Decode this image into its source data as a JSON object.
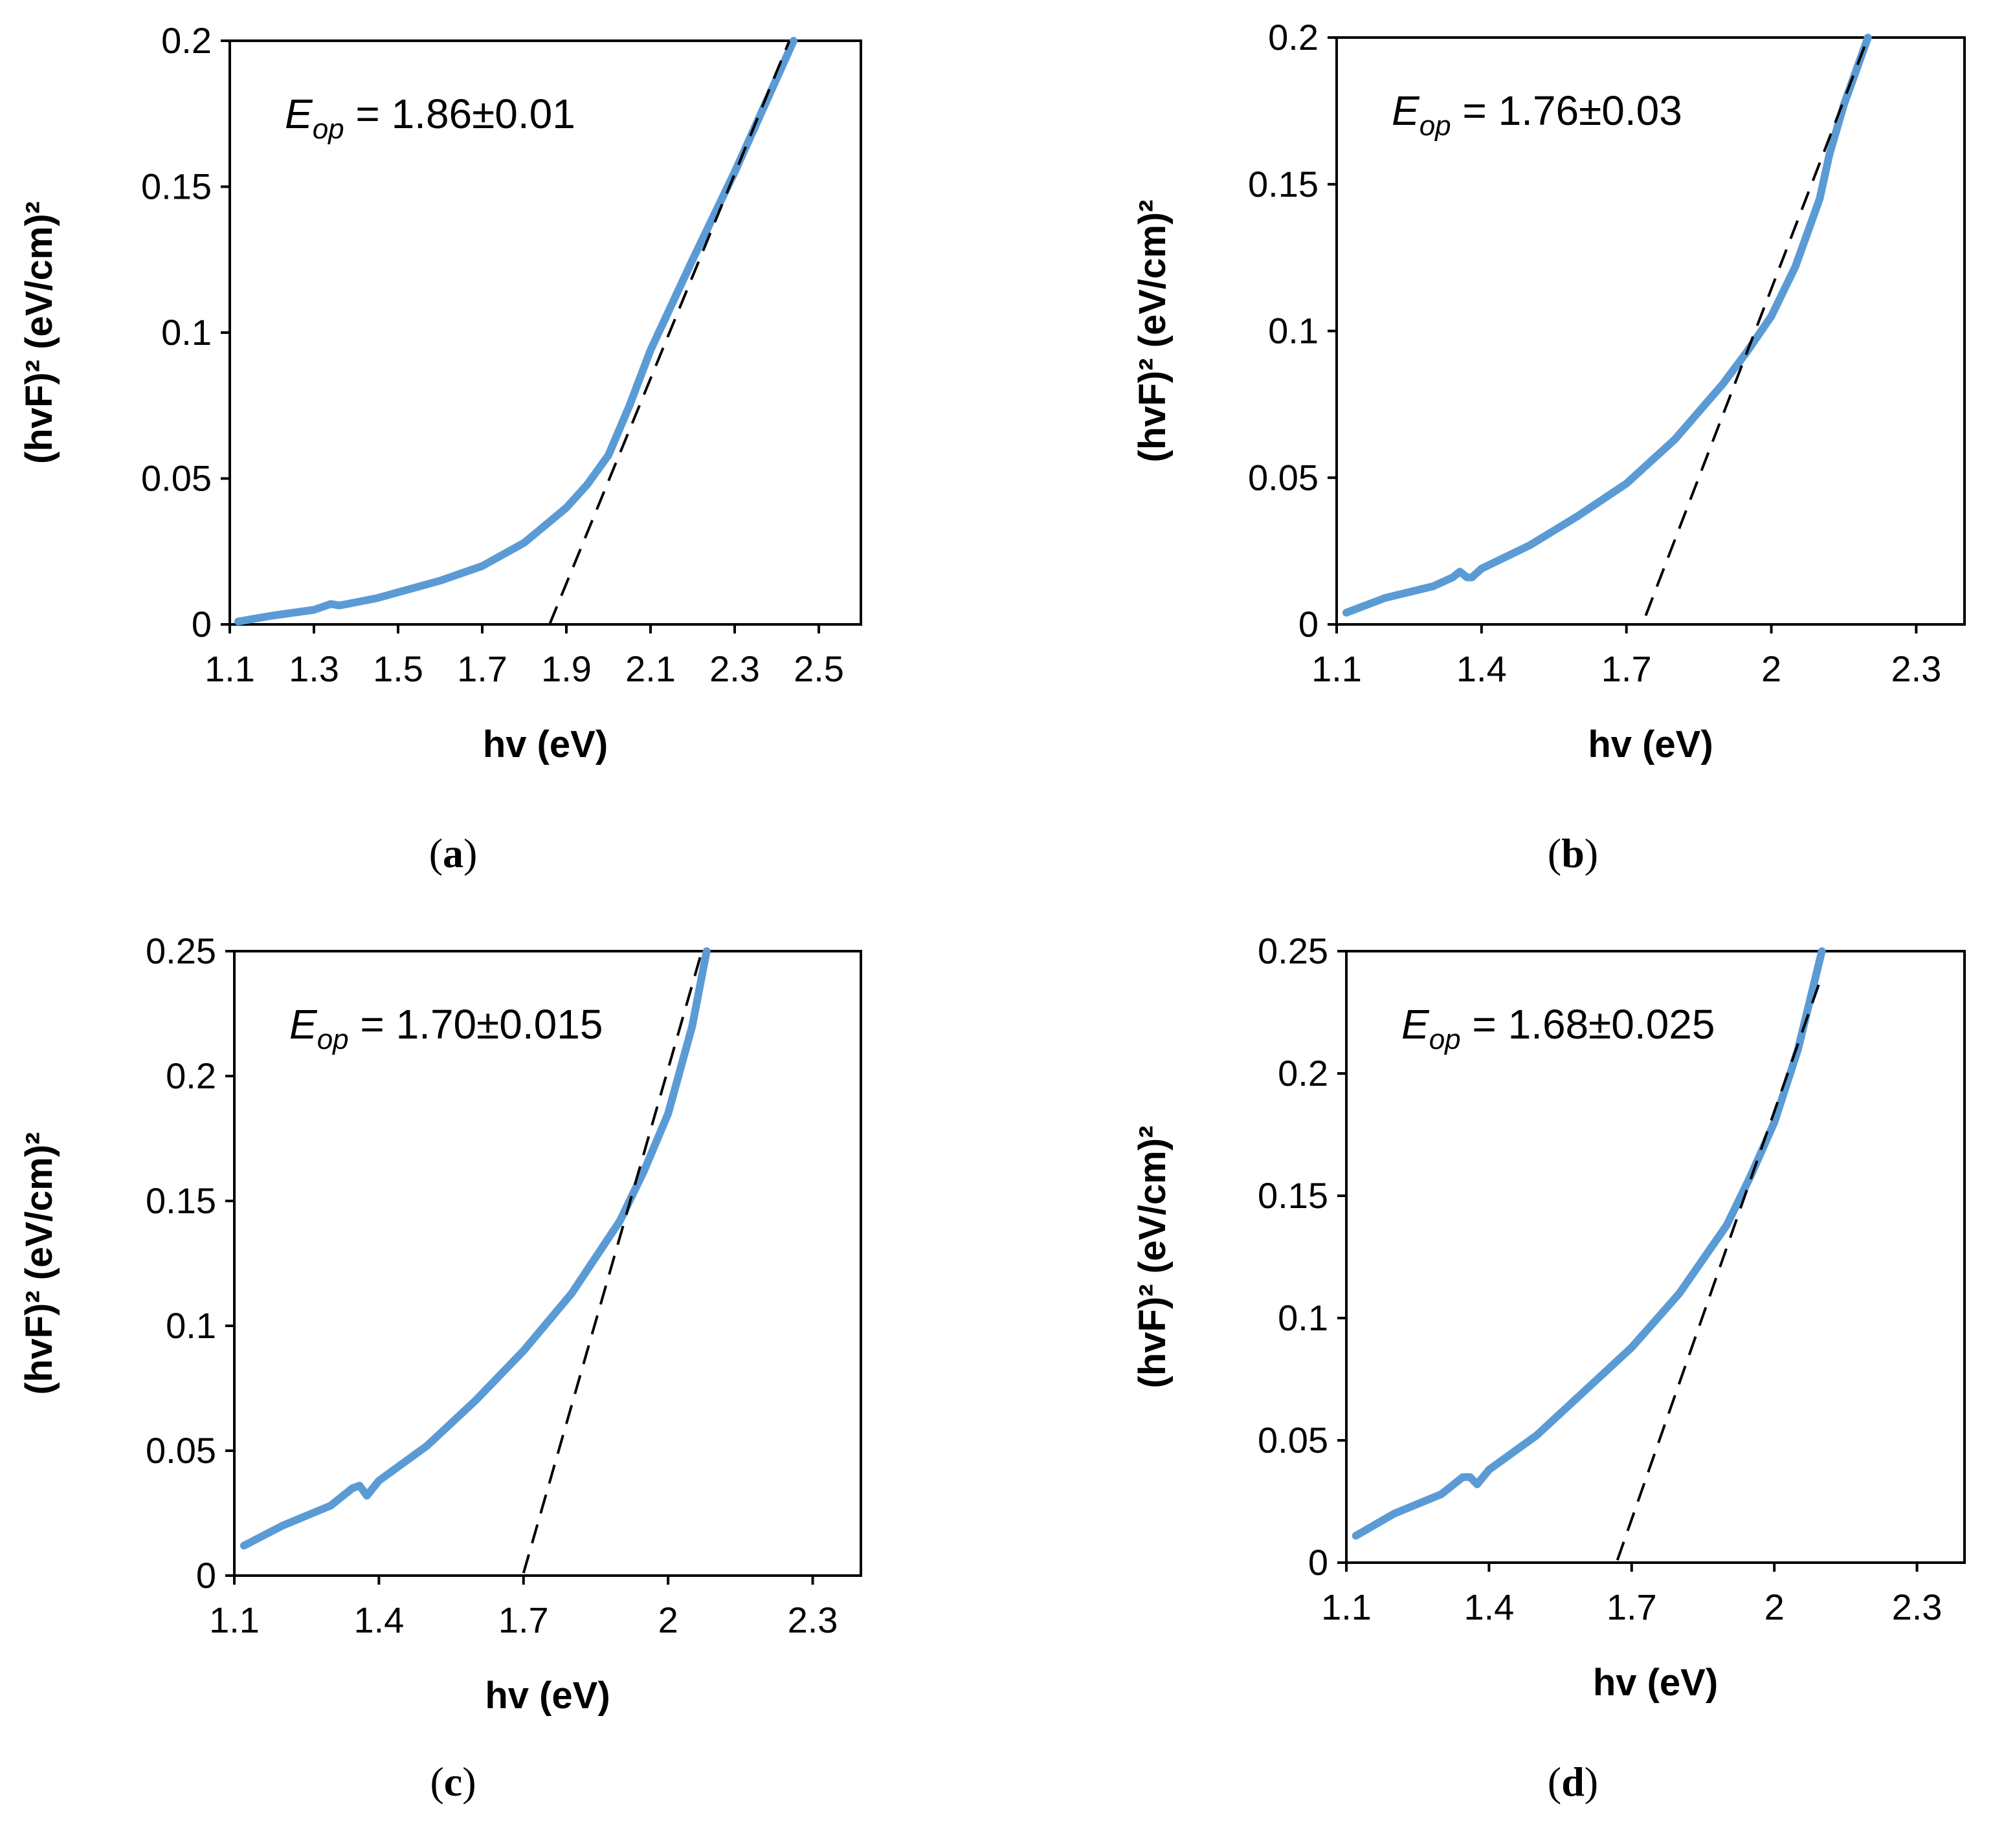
{
  "colors": {
    "curve": "#5B9BD5",
    "fit": "#000000"
  },
  "chart_data": [
    {
      "id": "a",
      "type": "line",
      "panel_label": "a",
      "xlabel": "hv (eV)",
      "ylabel": "(hvF)² (eV/cm)²",
      "annotation": {
        "symbol": "E",
        "subscript": "op",
        "text": " = 1.86±0.01"
      },
      "xlim": [
        1.1,
        2.6
      ],
      "ylim": [
        0,
        0.2
      ],
      "xticks": [
        1.1,
        1.3,
        1.5,
        1.7,
        1.9,
        2.1,
        2.3,
        2.5
      ],
      "xtick_labels": [
        "1.1",
        "1.3",
        "1.5",
        "1.7",
        "1.9",
        "2.1",
        "2.3",
        "2.5"
      ],
      "yticks": [
        0,
        0.05,
        0.1,
        0.15,
        0.2
      ],
      "ytick_labels": [
        "0",
        "0.05",
        "0.1",
        "0.15",
        "0.2"
      ],
      "series": [
        {
          "name": "data",
          "x": [
            1.12,
            1.2,
            1.3,
            1.34,
            1.36,
            1.38,
            1.45,
            1.5,
            1.6,
            1.7,
            1.8,
            1.9,
            1.95,
            2.0,
            2.05,
            2.1,
            2.2,
            2.3,
            2.44
          ],
          "y": [
            0.001,
            0.003,
            0.005,
            0.007,
            0.0065,
            0.007,
            0.009,
            0.011,
            0.015,
            0.02,
            0.028,
            0.04,
            0.048,
            0.058,
            0.075,
            0.094,
            0.125,
            0.155,
            0.2
          ]
        },
        {
          "name": "fit",
          "x": [
            1.86,
            2.43
          ],
          "y": [
            0,
            0.2
          ]
        }
      ]
    },
    {
      "id": "b",
      "type": "line",
      "panel_label": "b",
      "xlabel": "hv (eV)",
      "ylabel": "(hvF)² (eV/cm)²",
      "annotation": {
        "symbol": "E",
        "subscript": "op",
        "text": " = 1.76±0.03"
      },
      "xlim": [
        1.1,
        2.4
      ],
      "ylim": [
        0,
        0.2
      ],
      "xticks": [
        1.1,
        1.4,
        1.7,
        2.0,
        2.3
      ],
      "xtick_labels": [
        "1.1",
        "1.4",
        "1.7",
        "2",
        "2.3"
      ],
      "yticks": [
        0,
        0.05,
        0.1,
        0.15,
        0.2
      ],
      "ytick_labels": [
        "0",
        "0.05",
        "0.1",
        "0.15",
        "0.2"
      ],
      "series": [
        {
          "name": "data",
          "x": [
            1.12,
            1.2,
            1.3,
            1.34,
            1.355,
            1.37,
            1.38,
            1.4,
            1.5,
            1.6,
            1.7,
            1.8,
            1.9,
            1.95,
            2.0,
            2.05,
            2.1,
            2.12,
            2.15,
            2.2
          ],
          "y": [
            0.004,
            0.009,
            0.013,
            0.016,
            0.018,
            0.016,
            0.016,
            0.019,
            0.027,
            0.037,
            0.048,
            0.063,
            0.082,
            0.093,
            0.105,
            0.122,
            0.145,
            0.16,
            0.177,
            0.2
          ]
        },
        {
          "name": "fit",
          "x": [
            1.74,
            2.2
          ],
          "y": [
            0.003,
            0.2
          ]
        }
      ]
    },
    {
      "id": "c",
      "type": "line",
      "panel_label": "c",
      "xlabel": "hv (eV)",
      "ylabel": "(hvF)² (eV/cm)²",
      "annotation": {
        "symbol": "E",
        "subscript": "op",
        "text": " = 1.70±0.015"
      },
      "xlim": [
        1.1,
        2.4
      ],
      "ylim": [
        0,
        0.25
      ],
      "xticks": [
        1.1,
        1.4,
        1.7,
        2.0,
        2.3
      ],
      "xtick_labels": [
        "1.1",
        "1.4",
        "1.7",
        "2",
        "2.3"
      ],
      "yticks": [
        0,
        0.05,
        0.1,
        0.15,
        0.2,
        0.25
      ],
      "ytick_labels": [
        "0",
        "0.05",
        "0.1",
        "0.15",
        "0.2",
        "0.25"
      ],
      "series": [
        {
          "name": "data",
          "x": [
            1.12,
            1.2,
            1.3,
            1.345,
            1.36,
            1.375,
            1.4,
            1.5,
            1.6,
            1.7,
            1.8,
            1.9,
            1.95,
            2.0,
            2.05,
            2.08
          ],
          "y": [
            0.012,
            0.02,
            0.028,
            0.035,
            0.036,
            0.032,
            0.038,
            0.052,
            0.07,
            0.09,
            0.113,
            0.142,
            0.162,
            0.185,
            0.22,
            0.25
          ]
        },
        {
          "name": "fit",
          "x": [
            1.7,
            2.07
          ],
          "y": [
            0.001,
            0.25
          ]
        }
      ]
    },
    {
      "id": "d",
      "type": "line",
      "panel_label": "d",
      "xlabel": "hv (eV)",
      "ylabel": "(hvF)² (eV/cm)²",
      "annotation": {
        "symbol": "E",
        "subscript": "op",
        "text": " = 1.68±0.025"
      },
      "xlim": [
        1.1,
        2.4
      ],
      "ylim": [
        0,
        0.25
      ],
      "xticks": [
        1.1,
        1.4,
        1.7,
        2.0,
        2.3
      ],
      "xtick_labels": [
        "1.1",
        "1.4",
        "1.7",
        "2",
        "2.3"
      ],
      "yticks": [
        0,
        0.05,
        0.1,
        0.15,
        0.2,
        0.25
      ],
      "ytick_labels": [
        "0",
        "0.05",
        "0.1",
        "0.15",
        "0.2",
        "0.25"
      ],
      "series": [
        {
          "name": "data",
          "x": [
            1.12,
            1.2,
            1.3,
            1.345,
            1.36,
            1.375,
            1.4,
            1.5,
            1.6,
            1.7,
            1.8,
            1.9,
            1.95,
            2.0,
            2.05,
            2.1
          ],
          "y": [
            0.011,
            0.02,
            0.028,
            0.035,
            0.035,
            0.032,
            0.038,
            0.052,
            0.07,
            0.088,
            0.11,
            0.138,
            0.158,
            0.18,
            0.21,
            0.25
          ]
        },
        {
          "name": "fit",
          "x": [
            1.67,
            2.1
          ],
          "y": [
            0.001,
            0.24
          ]
        }
      ]
    }
  ]
}
